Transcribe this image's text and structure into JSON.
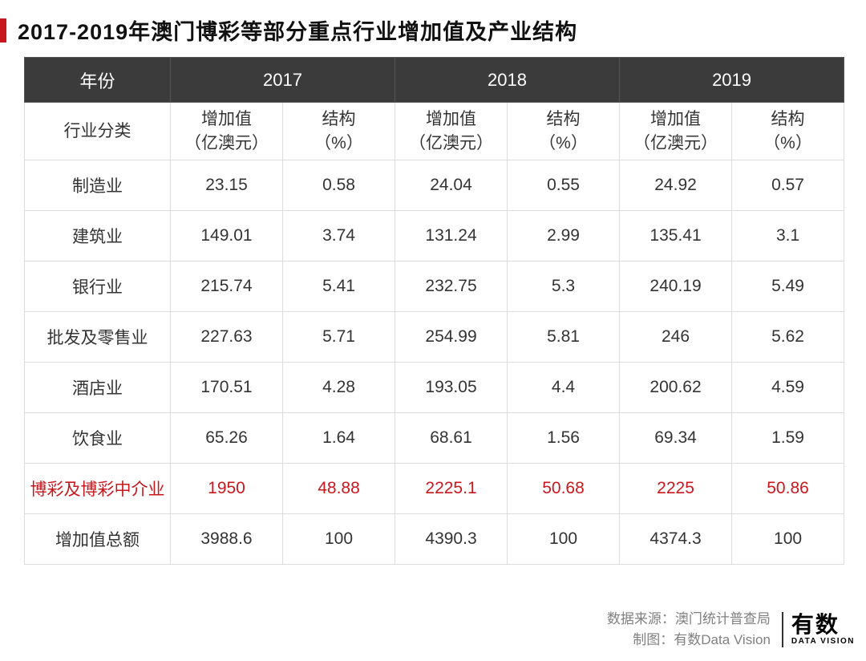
{
  "title": "2017-2019年澳门博彩等部分重点行业增加值及产业结构",
  "accent_color": "#c9171e",
  "header_bg": "#3b3b3b",
  "border_color": "#dcdcdc",
  "table": {
    "year_header_first": "年份",
    "years": [
      "2017",
      "2018",
      "2019"
    ],
    "category_header": "行业分类",
    "sub_value_label": "增加值\n（亿澳元）",
    "sub_pct_label": "结构\n（%）",
    "rows": [
      {
        "cat": "制造业",
        "v17": "23.15",
        "p17": "0.58",
        "v18": "24.04",
        "p18": "0.55",
        "v19": "24.92",
        "p19": "0.57",
        "hl": false
      },
      {
        "cat": "建筑业",
        "v17": "149.01",
        "p17": "3.74",
        "v18": "131.24",
        "p18": "2.99",
        "v19": "135.41",
        "p19": "3.1",
        "hl": false
      },
      {
        "cat": "银行业",
        "v17": "215.74",
        "p17": "5.41",
        "v18": "232.75",
        "p18": "5.3",
        "v19": "240.19",
        "p19": "5.49",
        "hl": false
      },
      {
        "cat": "批发及零售业",
        "v17": "227.63",
        "p17": "5.71",
        "v18": "254.99",
        "p18": "5.81",
        "v19": "246",
        "p19": "5.62",
        "hl": false
      },
      {
        "cat": "酒店业",
        "v17": "170.51",
        "p17": "4.28",
        "v18": "193.05",
        "p18": "4.4",
        "v19": "200.62",
        "p19": "4.59",
        "hl": false
      },
      {
        "cat": "饮食业",
        "v17": "65.26",
        "p17": "1.64",
        "v18": "68.61",
        "p18": "1.56",
        "v19": "69.34",
        "p19": "1.59",
        "hl": false
      },
      {
        "cat": "博彩及博彩中介业",
        "v17": "1950",
        "p17": "48.88",
        "v18": "2225.1",
        "p18": "50.68",
        "v19": "2225",
        "p19": "50.86",
        "hl": true
      },
      {
        "cat": "增加值总额",
        "v17": "3988.6",
        "p17": "100",
        "v18": "4390.3",
        "p18": "100",
        "v19": "4374.3",
        "p19": "100",
        "hl": false
      }
    ]
  },
  "footer": {
    "source_label": "数据来源：",
    "source_value": "澳门统计普查局",
    "credit_label": "制图：",
    "credit_value": "有数Data Vision",
    "logo_cn": "有数",
    "logo_en": "DATA VISION"
  }
}
